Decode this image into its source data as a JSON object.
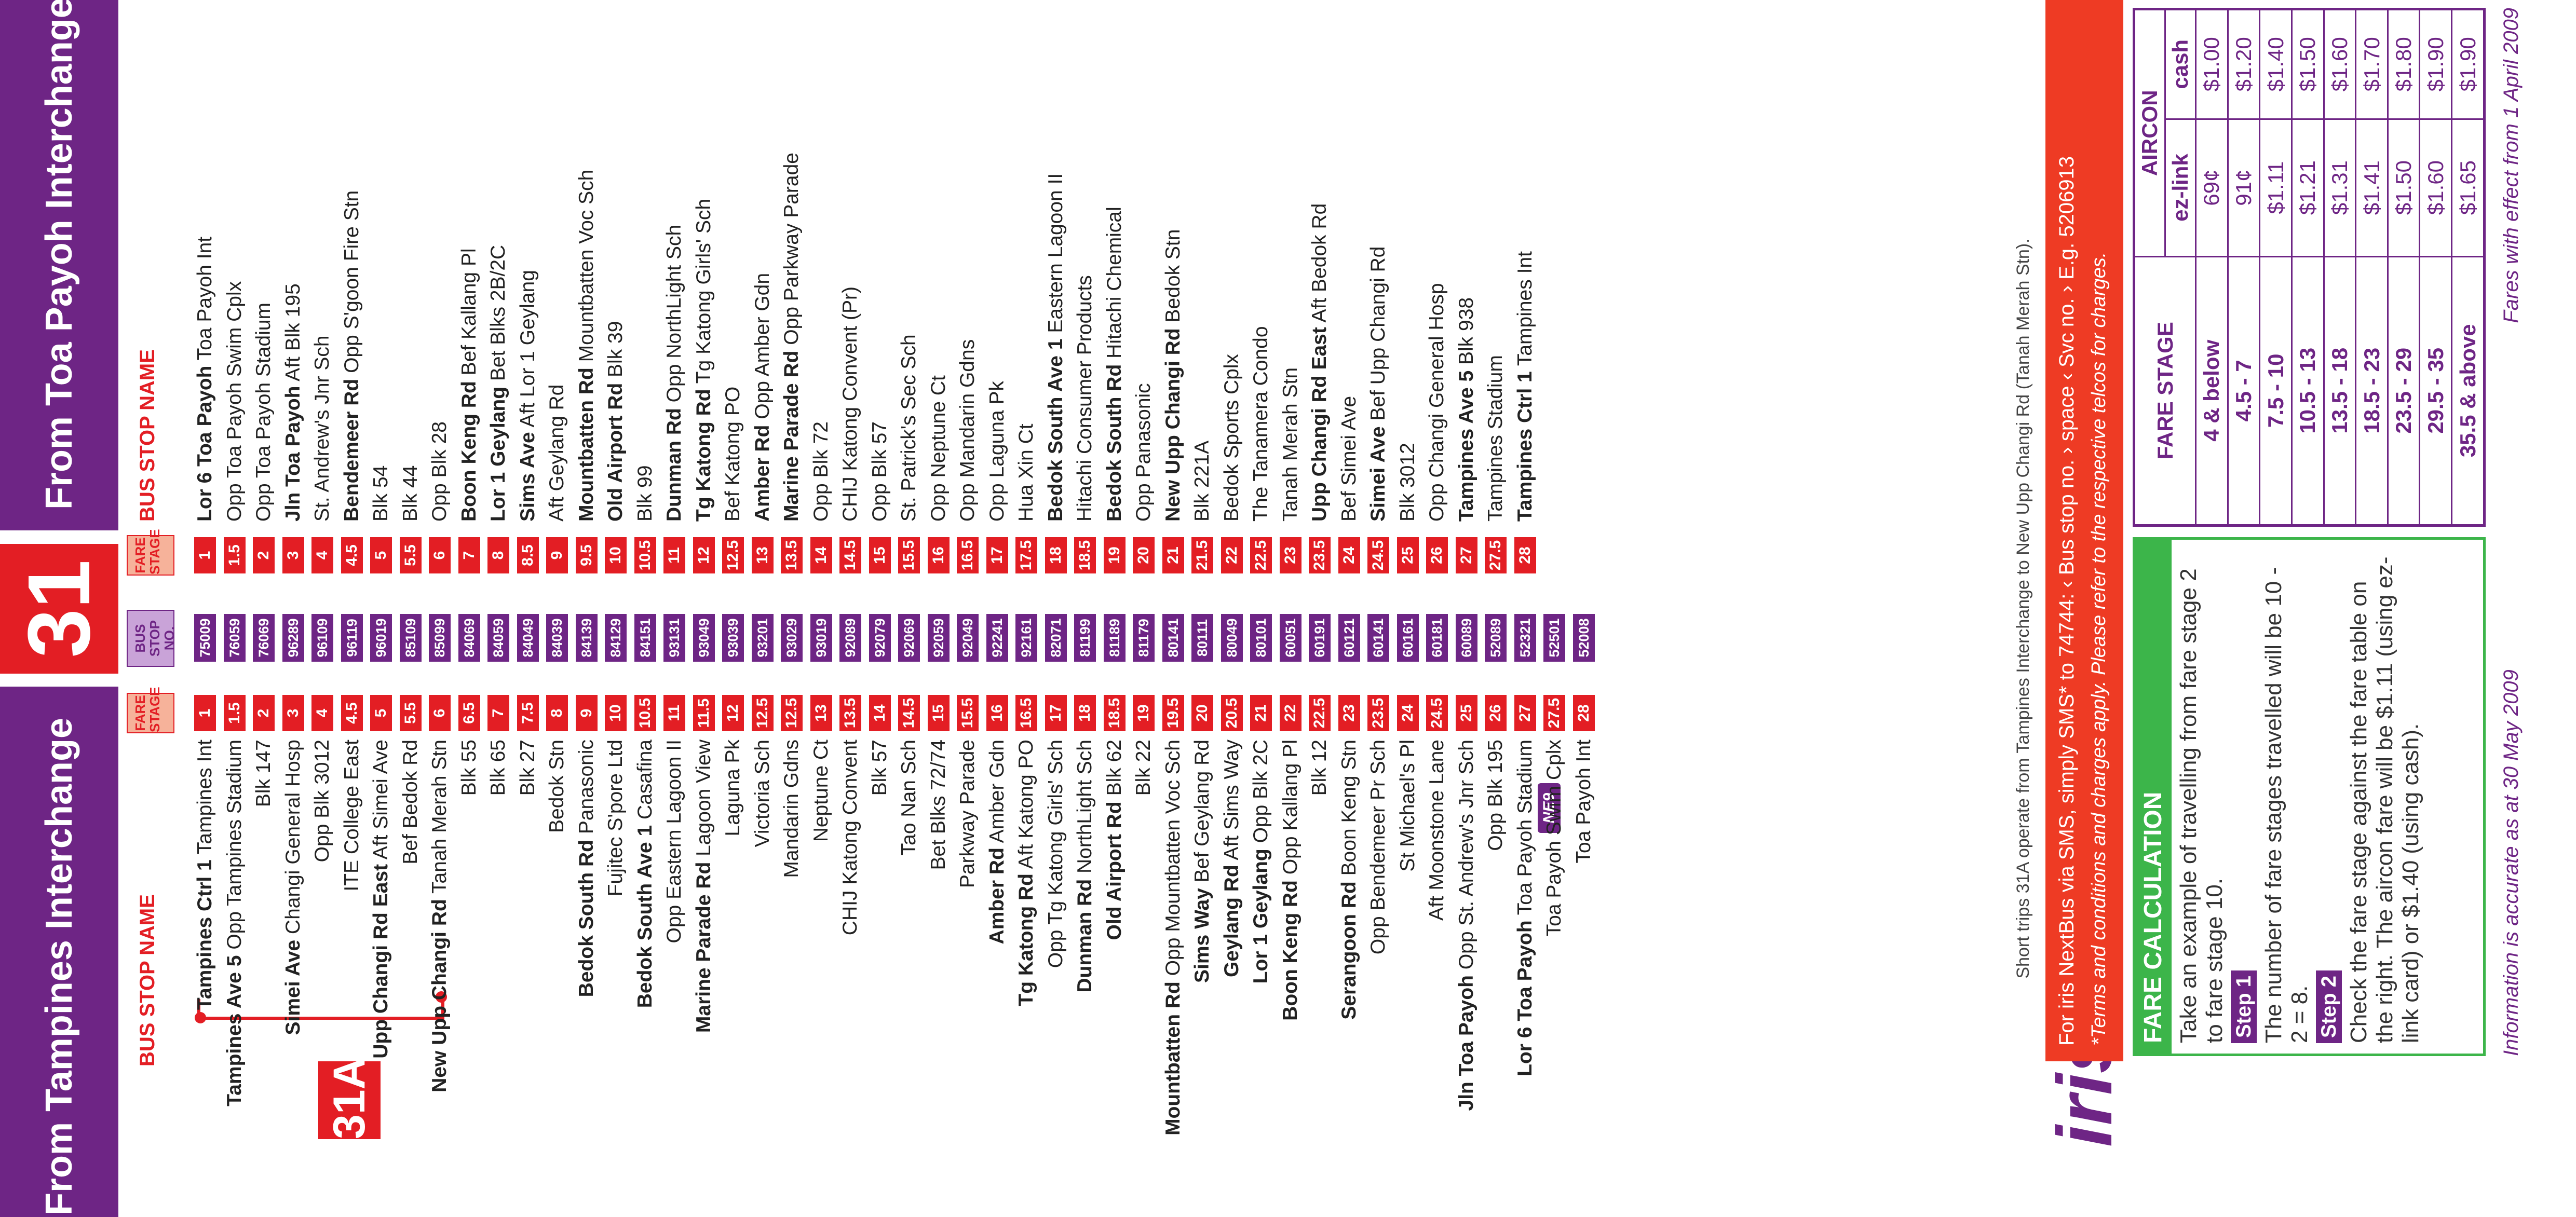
{
  "header": {
    "left_title": "From Tampines Interchange",
    "route": "31",
    "right_title": "From Toa Payoh Interchange"
  },
  "columns": {
    "bus_stop_name": "BUS STOP NAME",
    "fare_stage": "FARE STAGE",
    "bus_stop_no": "BUS STOP NO."
  },
  "short_trip_label": "31A",
  "ne9_label": "NE9",
  "left_rows": [
    {
      "b": "Tampines Ctrl 1",
      "n": "Tampines Int",
      "fs": "1",
      "no": "75009"
    },
    {
      "b": "Tampines Ave 5",
      "n": "Opp Tampines Stadium",
      "fs": "1.5",
      "no": "76059"
    },
    {
      "b": "",
      "n": "Blk 147",
      "fs": "2",
      "no": "76069"
    },
    {
      "b": "Simei Ave",
      "n": "Changi General Hosp",
      "fs": "3",
      "no": "96289"
    },
    {
      "b": "",
      "n": "Opp Blk 3012",
      "fs": "4",
      "no": "96109"
    },
    {
      "b": "",
      "n": "ITE College East",
      "fs": "4.5",
      "no": "96119"
    },
    {
      "b": "Upp Changi Rd East",
      "n": "Aft Simei Ave",
      "fs": "5",
      "no": "96019"
    },
    {
      "b": "",
      "n": "Bef Bedok Rd",
      "fs": "5.5",
      "no": "85109"
    },
    {
      "b": "New Upp Changi Rd",
      "n": "Tanah Merah Stn",
      "fs": "6",
      "no": "85099"
    },
    {
      "b": "",
      "n": "Blk 55",
      "fs": "6.5",
      "no": "84069"
    },
    {
      "b": "",
      "n": "Blk 65",
      "fs": "7",
      "no": "84059"
    },
    {
      "b": "",
      "n": "Blk 27",
      "fs": "7.5",
      "no": "84049"
    },
    {
      "b": "",
      "n": "Bedok Stn",
      "fs": "8",
      "no": "84039"
    },
    {
      "b": "Bedok South Rd",
      "n": "Panasonic",
      "fs": "9",
      "no": "84139"
    },
    {
      "b": "",
      "n": "Fujitec S'pore Ltd",
      "fs": "10",
      "no": "84129"
    },
    {
      "b": "Bedok South Ave 1",
      "n": "Casafina",
      "fs": "10.5",
      "no": "84151"
    },
    {
      "b": "",
      "n": "Opp Eastern Lagoon II",
      "fs": "11",
      "no": "93131"
    },
    {
      "b": "Marine Parade Rd",
      "n": "Lagoon View",
      "fs": "11.5",
      "no": "93049"
    },
    {
      "b": "",
      "n": "Laguna Pk",
      "fs": "12",
      "no": "93039"
    },
    {
      "b": "",
      "n": "Victoria Sch",
      "fs": "12.5",
      "no": "93201"
    },
    {
      "b": "",
      "n": "Mandarin Gdns",
      "fs": "12.5",
      "no": "93029"
    },
    {
      "b": "",
      "n": "Neptune Ct",
      "fs": "13",
      "no": "93019"
    },
    {
      "b": "",
      "n": "CHIJ Katong Convent",
      "fs": "13.5",
      "no": "92089"
    },
    {
      "b": "",
      "n": "Blk 57",
      "fs": "14",
      "no": "92079"
    },
    {
      "b": "",
      "n": "Tao Nan Sch",
      "fs": "14.5",
      "no": "92069"
    },
    {
      "b": "",
      "n": "Bet Blks 72/74",
      "fs": "15",
      "no": "92059"
    },
    {
      "b": "",
      "n": "Parkway Parade",
      "fs": "15.5",
      "no": "92049"
    },
    {
      "b": "Amber Rd",
      "n": "Amber Gdn",
      "fs": "16",
      "no": "92241"
    },
    {
      "b": "Tg Katong Rd",
      "n": "Aft Katong PO",
      "fs": "16.5",
      "no": "92161"
    },
    {
      "b": "",
      "n": "Opp Tg Katong Girls' Sch",
      "fs": "17",
      "no": "82071"
    },
    {
      "b": "Dunman Rd",
      "n": "NorthLight Sch",
      "fs": "18",
      "no": "81199"
    },
    {
      "b": "Old Airport Rd",
      "n": "Blk 62",
      "fs": "18.5",
      "no": "81189"
    },
    {
      "b": "",
      "n": "Blk 22",
      "fs": "19",
      "no": "81179"
    },
    {
      "b": "Mountbatten Rd",
      "n": "Opp Mountbatten Voc Sch",
      "fs": "19.5",
      "no": "80141"
    },
    {
      "b": "Sims Way",
      "n": "Bef Geylang Rd",
      "fs": "20",
      "no": "80111"
    },
    {
      "b": "Geylang Rd",
      "n": "Aft Sims Way",
      "fs": "20.5",
      "no": "80049"
    },
    {
      "b": "Lor 1 Geylang",
      "n": "Opp Blk 2C",
      "fs": "21",
      "no": "80101"
    },
    {
      "b": "Boon Keng Rd",
      "n": "Opp Kallang Pl",
      "fs": "22",
      "no": "60051"
    },
    {
      "b": "",
      "n": "Blk 12",
      "fs": "22.5",
      "no": "60191"
    },
    {
      "b": "Serangoon Rd",
      "n": "Boon Keng Stn",
      "fs": "23",
      "no": "60121"
    },
    {
      "b": "",
      "n": "Opp Bendemeer Pr Sch",
      "fs": "23.5",
      "no": "60141"
    },
    {
      "b": "",
      "n": "St Michael's Pl",
      "fs": "24",
      "no": "60161"
    },
    {
      "b": "",
      "n": "Aft Moonstone Lane",
      "fs": "24.5",
      "no": "60181"
    },
    {
      "b": "Jln Toa Payoh",
      "n": "Opp St. Andrew's Jnr Sch",
      "fs": "25",
      "no": "60089"
    },
    {
      "b": "",
      "n": "Opp Blk 195",
      "fs": "26",
      "no": "52089"
    },
    {
      "b": "Lor 6 Toa Payoh",
      "n": "Toa Payoh Stadium",
      "fs": "27",
      "no": "52321"
    },
    {
      "b": "",
      "n": "Toa Payoh Swim Cplx",
      "fs": "27.5",
      "no": "52501"
    },
    {
      "b": "",
      "n": "Toa Payoh Int",
      "fs": "28",
      "no": "52008"
    }
  ],
  "right_rows": [
    {
      "b": "Lor 6 Toa Payoh",
      "n": "Toa Payoh Int",
      "fs": "1"
    },
    {
      "b": "",
      "n": "Opp Toa Payoh Swim Cplx",
      "fs": "1.5"
    },
    {
      "b": "",
      "n": "Opp Toa Payoh Stadium",
      "fs": "2"
    },
    {
      "b": "Jln Toa Payoh",
      "n": "Aft Blk 195",
      "fs": "3"
    },
    {
      "b": "",
      "n": "St. Andrew's Jnr Sch",
      "fs": "4"
    },
    {
      "b": "Bendemeer Rd",
      "n": "Opp S'goon Fire Stn",
      "fs": "4.5"
    },
    {
      "b": "",
      "n": "Blk 54",
      "fs": "5"
    },
    {
      "b": "",
      "n": "Blk 44",
      "fs": "5.5"
    },
    {
      "b": "",
      "n": "Opp Blk 28",
      "fs": "6"
    },
    {
      "b": "Boon Keng Rd",
      "n": "Bef Kallang Pl",
      "fs": "7"
    },
    {
      "b": "Lor 1 Geylang",
      "n": "Bet Blks 2B/2C",
      "fs": "8"
    },
    {
      "b": "Sims Ave",
      "n": "Aft Lor 1 Geylang",
      "fs": "8.5"
    },
    {
      "b": "",
      "n": "Aft Geylang Rd",
      "fs": "9"
    },
    {
      "b": "Mountbatten Rd",
      "n": "Mountbatten Voc Sch",
      "fs": "9.5"
    },
    {
      "b": "Old Airport Rd",
      "n": "Blk 39",
      "fs": "10"
    },
    {
      "b": "",
      "n": "Blk 99",
      "fs": "10.5"
    },
    {
      "b": "Dunman Rd",
      "n": "Opp NorthLight Sch",
      "fs": "11"
    },
    {
      "b": "Tg Katong Rd",
      "n": "Tg Katong Girls' Sch",
      "fs": "12"
    },
    {
      "b": "",
      "n": "Bef Katong PO",
      "fs": "12.5"
    },
    {
      "b": "Amber Rd",
      "n": "Opp Amber Gdn",
      "fs": "13"
    },
    {
      "b": "Marine Parade Rd",
      "n": "Opp Parkway Parade",
      "fs": "13.5"
    },
    {
      "b": "",
      "n": "Opp Blk 72",
      "fs": "14"
    },
    {
      "b": "",
      "n": "CHIJ Katong Convent (Pr)",
      "fs": "14.5"
    },
    {
      "b": "",
      "n": "Opp Blk 57",
      "fs": "15"
    },
    {
      "b": "",
      "n": "St. Patrick's Sec Sch",
      "fs": "15.5"
    },
    {
      "b": "",
      "n": "Opp Neptune Ct",
      "fs": "16"
    },
    {
      "b": "",
      "n": "Opp Mandarin Gdns",
      "fs": "16.5"
    },
    {
      "b": "",
      "n": "Opp Laguna Pk",
      "fs": "17"
    },
    {
      "b": "",
      "n": "Hua Xin Ct",
      "fs": "17.5"
    },
    {
      "b": "Bedok South Ave 1",
      "n": "Eastern Lagoon II",
      "fs": "18"
    },
    {
      "b": "",
      "n": "Hitachi Consumer Products",
      "fs": "18.5"
    },
    {
      "b": "Bedok South Rd",
      "n": "Hitachi Chemical",
      "fs": "19"
    },
    {
      "b": "",
      "n": "Opp Panasonic",
      "fs": "20"
    },
    {
      "b": "New Upp Changi Rd",
      "n": "Bedok Stn",
      "fs": "21"
    },
    {
      "b": "",
      "n": "Blk 221A",
      "fs": "21.5"
    },
    {
      "b": "",
      "n": "Bedok Sports Cplx",
      "fs": "22"
    },
    {
      "b": "",
      "n": "The Tanamera Condo",
      "fs": "22.5"
    },
    {
      "b": "",
      "n": "Tanah Merah Stn",
      "fs": "23"
    },
    {
      "b": "Upp Changi Rd East",
      "n": "Aft Bedok Rd",
      "fs": "23.5"
    },
    {
      "b": "",
      "n": "Bef Simei Ave",
      "fs": "24"
    },
    {
      "b": "Simei Ave",
      "n": "Bef Upp Changi Rd",
      "fs": "24.5"
    },
    {
      "b": "",
      "n": "Blk 3012",
      "fs": "25"
    },
    {
      "b": "",
      "n": "Opp Changi General Hosp",
      "fs": "26"
    },
    {
      "b": "Tampines Ave 5",
      "n": "Blk 938",
      "fs": "27"
    },
    {
      "b": "",
      "n": "Tampines Stadium",
      "fs": "27.5"
    },
    {
      "b": "Tampines Ctrl 1",
      "n": "Tampines Int",
      "fs": "28"
    }
  ],
  "short_trips_note": "Short trips 31A operate from Tampines Interchange to New Upp Changi Rd (Tanah Merah Stn).",
  "iris": {
    "logo": "iris",
    "line1": "For iris NextBus via SMS, simply SMS* to 74744: ‹ Bus stop no. › space ‹ Svc no. › E.g. 5206913",
    "line2": "*Terms and conditions and charges apply. Please refer to the respective telcos for charges."
  },
  "fare_calc": {
    "title": "FARE CALCULATION",
    "intro": "Take an example of travelling from fare stage 2 to fare stage 10.",
    "step1_label": "Step 1",
    "step1_text": "The number of fare stages travelled will be 10 - 2 = 8.",
    "step2_label": "Step 2",
    "step2_text": "Check the fare stage against the fare table on the right. The aircon fare will be $1.11 (using ez-link card) or $1.40 (using cash)."
  },
  "fare_table": {
    "stage_header": "FARE STAGE",
    "aircon_header": "AIRCON",
    "ezlink_header": "ez-link",
    "cash_header": "cash",
    "rows": [
      {
        "stage": "4 & below",
        "ez": "69¢",
        "cash": "$1.00"
      },
      {
        "stage": "4.5 - 7",
        "ez": "91¢",
        "cash": "$1.20"
      },
      {
        "stage": "7.5 - 10",
        "ez": "$1.11",
        "cash": "$1.40"
      },
      {
        "stage": "10.5 - 13",
        "ez": "$1.21",
        "cash": "$1.50"
      },
      {
        "stage": "13.5 - 18",
        "ez": "$1.31",
        "cash": "$1.60"
      },
      {
        "stage": "18.5 - 23",
        "ez": "$1.41",
        "cash": "$1.70"
      },
      {
        "stage": "23.5 - 29",
        "ez": "$1.50",
        "cash": "$1.80"
      },
      {
        "stage": "29.5 - 35",
        "ez": "$1.60",
        "cash": "$1.90"
      },
      {
        "stage": "35.5 & above",
        "ez": "$1.65",
        "cash": "$1.90"
      }
    ]
  },
  "footer": {
    "accuracy": "Information is accurate as at 30 May 2009",
    "effective": "Fares with effect from 1 April 2009"
  },
  "colors": {
    "purple": "#6e2585",
    "red": "#e31e24",
    "green": "#3cb54a",
    "orange": "#ee3b24"
  }
}
